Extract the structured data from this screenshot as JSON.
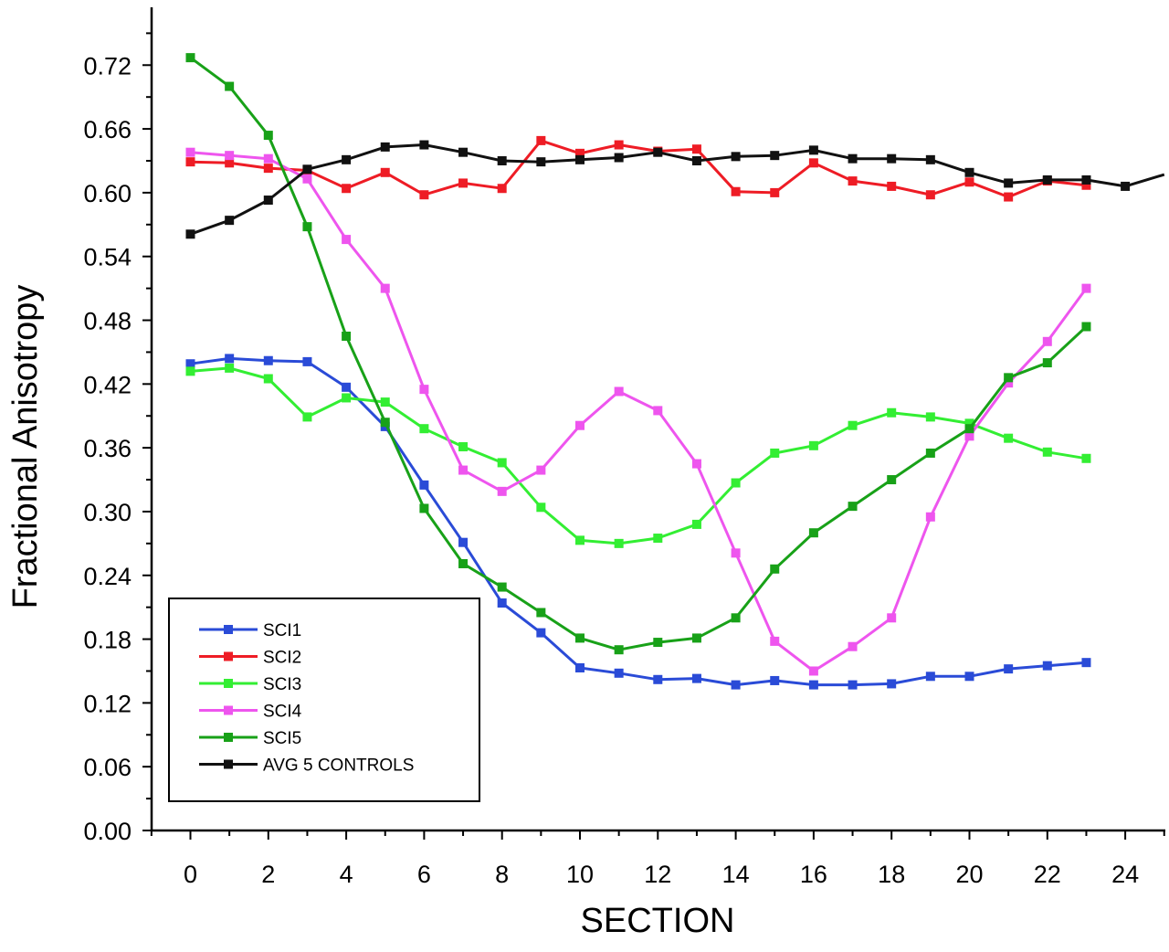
{
  "chart_data": {
    "type": "line",
    "xlabel": "SECTION",
    "ylabel": "Fractional Anisotropy",
    "xlim": [
      -1,
      25
    ],
    "ylim": [
      0,
      0.78
    ],
    "xticks": [
      0,
      2,
      4,
      6,
      8,
      10,
      12,
      14,
      16,
      18,
      20,
      22,
      24
    ],
    "yticks": [
      0.0,
      0.06,
      0.12,
      0.18,
      0.24,
      0.3,
      0.36,
      0.42,
      0.48,
      0.54,
      0.6,
      0.66,
      0.72
    ],
    "x_tick_labels": [
      "0",
      "2",
      "4",
      "6",
      "8",
      "10",
      "12",
      "14",
      "16",
      "18",
      "20",
      "22",
      "24"
    ],
    "y_tick_labels": [
      "0.00",
      "0.06",
      "0.12",
      "0.18",
      "0.24",
      "0.30",
      "0.36",
      "0.42",
      "0.48",
      "0.54",
      "0.60",
      "0.66",
      "0.72"
    ],
    "grid": false,
    "legend_position": "bottom-left",
    "series": [
      {
        "name": "SCI1",
        "color": "#2a4bd7",
        "x": [
          0,
          1,
          2,
          3,
          4,
          5,
          6,
          7,
          8,
          9,
          10,
          11,
          12,
          13,
          14,
          15,
          16,
          17,
          18,
          19,
          20,
          21,
          22,
          23
        ],
        "y": [
          0.439,
          0.444,
          0.442,
          0.441,
          0.417,
          0.38,
          0.325,
          0.271,
          0.214,
          0.186,
          0.153,
          0.148,
          0.142,
          0.143,
          0.137,
          0.141,
          0.137,
          0.137,
          0.138,
          0.145,
          0.145,
          0.152,
          0.155,
          0.158
        ]
      },
      {
        "name": "SCI2",
        "color": "#ee1c25",
        "x": [
          0,
          1,
          2,
          3,
          4,
          5,
          6,
          7,
          8,
          9,
          10,
          11,
          12,
          13,
          14,
          15,
          16,
          17,
          18,
          19,
          20,
          21,
          22,
          23
        ],
        "y": [
          0.629,
          0.628,
          0.623,
          0.621,
          0.604,
          0.619,
          0.598,
          0.609,
          0.604,
          0.649,
          0.637,
          0.645,
          0.639,
          0.641,
          0.601,
          0.6,
          0.628,
          0.611,
          0.606,
          0.598,
          0.61,
          0.596,
          0.611,
          0.607
        ]
      },
      {
        "name": "SCI3",
        "color": "#33ee33",
        "x": [
          0,
          1,
          2,
          3,
          4,
          5,
          6,
          7,
          8,
          9,
          10,
          11,
          12,
          13,
          14,
          15,
          16,
          17,
          18,
          19,
          20,
          21,
          22,
          23
        ],
        "y": [
          0.432,
          0.435,
          0.425,
          0.389,
          0.407,
          0.403,
          0.378,
          0.361,
          0.346,
          0.304,
          0.273,
          0.27,
          0.275,
          0.288,
          0.327,
          0.355,
          0.362,
          0.381,
          0.393,
          0.389,
          0.383,
          0.369,
          0.356,
          0.35
        ]
      },
      {
        "name": "SCI4",
        "color": "#ee55ee",
        "x": [
          0,
          1,
          2,
          3,
          4,
          5,
          6,
          7,
          8,
          9,
          10,
          11,
          12,
          13,
          14,
          15,
          16,
          17,
          18,
          19,
          20,
          21,
          22,
          23
        ],
        "y": [
          0.638,
          0.635,
          0.632,
          0.613,
          0.556,
          0.51,
          0.415,
          0.339,
          0.319,
          0.339,
          0.381,
          0.413,
          0.395,
          0.345,
          0.261,
          0.178,
          0.15,
          0.173,
          0.2,
          0.295,
          0.371,
          0.421,
          0.46,
          0.51
        ]
      },
      {
        "name": "SCI5",
        "color": "#18a118",
        "x": [
          0,
          1,
          2,
          3,
          4,
          5,
          6,
          7,
          8,
          9,
          10,
          11,
          12,
          13,
          14,
          15,
          16,
          17,
          18,
          19,
          20,
          21,
          22,
          23
        ],
        "y": [
          0.727,
          0.7,
          0.654,
          0.568,
          0.465,
          0.384,
          0.303,
          0.251,
          0.229,
          0.205,
          0.181,
          0.17,
          0.177,
          0.181,
          0.2,
          0.246,
          0.28,
          0.305,
          0.33,
          0.355,
          0.378,
          0.426,
          0.44,
          0.474
        ]
      },
      {
        "name": "AVG 5 CONTROLS",
        "color": "#111111",
        "x": [
          0,
          1,
          2,
          3,
          4,
          5,
          6,
          7,
          8,
          9,
          10,
          11,
          12,
          13,
          14,
          15,
          16,
          17,
          18,
          19,
          20,
          21,
          22,
          23,
          24,
          25
        ],
        "y": [
          0.561,
          0.574,
          0.593,
          0.622,
          0.631,
          0.643,
          0.645,
          0.638,
          0.63,
          0.629,
          0.631,
          0.633,
          0.638,
          0.63,
          0.634,
          0.635,
          0.64,
          0.632,
          0.632,
          0.631,
          0.619,
          0.609,
          0.612,
          0.612,
          0.606,
          0.617
        ]
      }
    ]
  }
}
